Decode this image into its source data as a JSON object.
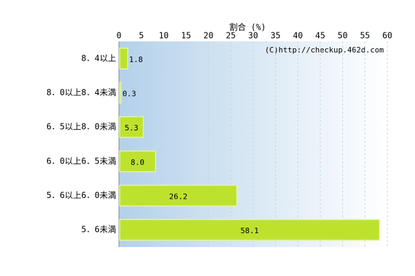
{
  "chart_data": {
    "type": "hbar",
    "x_label": "割合 (%)",
    "watermark": "(C)http://checkup.462d.com",
    "categories": [
      "8．4以上",
      "8．0以上8．4未満",
      "6．5以上8．0未満",
      "6．0以上6．5未満",
      "5．6以上6．0未満",
      "5．6未満"
    ],
    "values": [
      1.8,
      0.3,
      5.3,
      8.0,
      26.2,
      58.1
    ],
    "value_labels": [
      "1.8",
      "0.3",
      "5.3",
      "8.0",
      "26.2",
      "58.1"
    ],
    "color": "#bde22e",
    "xlim": [
      0,
      60
    ],
    "xticks": [
      0,
      5,
      10,
      15,
      20,
      25,
      30,
      35,
      40,
      45,
      50,
      55,
      60
    ],
    "grid": true
  }
}
